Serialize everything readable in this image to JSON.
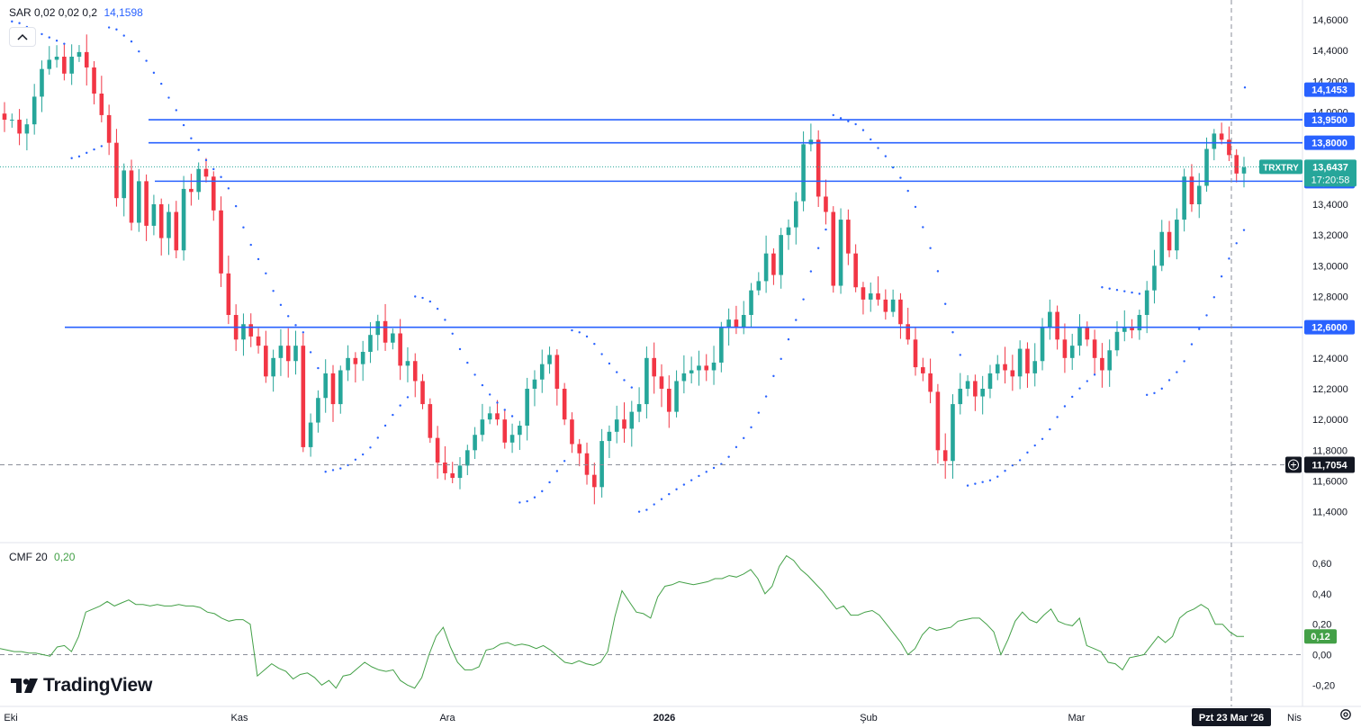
{
  "symbol": "TRXTRY",
  "price": {
    "last": "13,6437",
    "countdown": "17:20:58",
    "crosshair_value": "11,7054",
    "color": "#26a69a"
  },
  "sar": {
    "name": "SAR",
    "params": "0,02 0,02 0,2",
    "value": "14,1598"
  },
  "cmf": {
    "name": "CMF 20",
    "value": "0,20",
    "last_label": "0,12",
    "color": "#43a047"
  },
  "levels": [
    {
      "label": "14,1453",
      "value": 14.1453,
      "line": false
    },
    {
      "label": "13,9500",
      "value": 13.95,
      "line": true
    },
    {
      "label": "13,8000",
      "value": 13.8,
      "line": true
    },
    {
      "label": "13,5500",
      "value": 13.55,
      "line": true
    },
    {
      "label": "12,6000",
      "value": 12.6,
      "line": true
    }
  ],
  "colors": {
    "up": "#26a69a",
    "down": "#f23645",
    "level": "#2962ff",
    "sar": "#2962ff",
    "cmf": "#43a047"
  },
  "axis": {
    "price_ticks": [
      "14,6000",
      "14,4000",
      "14,2000",
      "14,0000",
      "13,8000",
      "13,6000",
      "13,4000",
      "13,2000",
      "13,0000",
      "12,8000",
      "12,6000",
      "12,4000",
      "12,2000",
      "12,0000",
      "11,8000",
      "11,6000",
      "11,4000"
    ],
    "cmf_ticks": [
      "0,60",
      "0,40",
      "0,20",
      "0,00",
      "-0,20"
    ],
    "time_labels": [
      "Eki",
      "Kas",
      "Ara",
      "2026",
      "Şub",
      "Mar",
      "Nis"
    ],
    "crosshair_date": "Pzt 23 Mar '26"
  },
  "brand": "TradingView",
  "chart_data": [
    {
      "type": "candlestick",
      "title": "TRXTRY",
      "interval": "daily",
      "x_labels": [
        "Eki",
        "Kas",
        "Ara",
        "2026",
        "Şub",
        "Mar",
        "Nis"
      ],
      "ylim": [
        11.3,
        14.7
      ],
      "close_path": [
        13.95,
        13.95,
        13.86,
        13.92,
        14.1,
        14.28,
        14.34,
        14.36,
        14.25,
        14.36,
        14.39,
        14.29,
        14.12,
        13.98,
        13.8,
        13.44,
        13.62,
        13.28,
        13.55,
        13.26,
        13.4,
        13.18,
        13.35,
        13.1,
        13.5,
        13.48,
        13.63,
        13.58,
        13.36,
        12.95,
        12.68,
        12.52,
        12.62,
        12.54,
        12.48,
        12.28,
        12.4,
        12.48,
        12.38,
        12.48,
        11.82,
        11.98,
        12.14,
        12.3,
        12.1,
        12.32,
        12.4,
        12.36,
        12.44,
        12.55,
        12.64,
        12.5,
        12.56,
        12.35,
        12.38,
        12.25,
        12.1,
        11.88,
        11.72,
        11.65,
        11.62,
        11.7,
        11.8,
        11.9,
        12.0,
        12.04,
        12.0,
        11.85,
        11.9,
        11.96,
        12.2,
        12.26,
        12.36,
        12.42,
        12.2,
        12.0,
        11.84,
        11.78,
        11.64,
        11.56,
        11.86,
        11.92,
        12.0,
        11.94,
        12.05,
        12.1,
        12.4,
        12.28,
        12.2,
        12.05,
        12.25,
        12.3,
        12.32,
        12.35,
        12.32,
        12.37,
        12.6,
        12.65,
        12.6,
        12.68,
        12.84,
        12.9,
        13.08,
        12.94,
        13.2,
        13.25,
        13.42,
        13.79,
        13.82,
        13.45,
        13.35,
        12.87,
        13.3,
        13.08,
        12.86,
        12.78,
        12.82,
        12.78,
        12.7,
        12.78,
        12.62,
        12.52,
        12.34,
        12.3,
        12.18,
        11.8,
        11.73,
        12.1,
        12.2,
        12.25,
        12.15,
        12.2,
        12.3,
        12.36,
        12.32,
        12.28,
        12.46,
        12.3,
        12.38,
        12.6,
        12.7,
        12.52,
        12.4,
        12.48,
        12.6,
        12.52,
        12.4,
        12.32,
        12.45,
        12.57,
        12.6,
        12.58,
        12.68,
        12.84,
        13.0,
        13.22,
        13.1,
        13.3,
        13.58,
        13.4,
        13.52,
        13.76,
        13.86,
        13.82,
        13.72,
        13.6,
        13.64
      ],
      "closing_price": 13.6437,
      "sar_last": 14.1598
    },
    {
      "type": "line",
      "title": "CMF 20",
      "ylim": [
        -0.28,
        0.7
      ],
      "values": [
        0.04,
        0.03,
        0.02,
        0.02,
        0.01,
        0.01,
        0.0,
        -0.01,
        0.05,
        0.06,
        0.02,
        0.12,
        0.28,
        0.3,
        0.32,
        0.35,
        0.32,
        0.34,
        0.36,
        0.33,
        0.33,
        0.32,
        0.33,
        0.32,
        0.32,
        0.33,
        0.32,
        0.32,
        0.31,
        0.28,
        0.27,
        0.24,
        0.22,
        0.23,
        0.23,
        0.2,
        -0.14,
        -0.1,
        -0.06,
        -0.09,
        -0.11,
        -0.16,
        -0.13,
        -0.12,
        -0.15,
        -0.2,
        -0.17,
        -0.22,
        -0.14,
        -0.13,
        -0.09,
        -0.05,
        -0.08,
        -0.1,
        -0.11,
        -0.1,
        -0.17,
        -0.2,
        -0.22,
        -0.15,
        0.0,
        0.12,
        0.18,
        0.05,
        -0.05,
        -0.1,
        -0.1,
        -0.08,
        0.03,
        0.04,
        0.07,
        0.08,
        0.06,
        0.07,
        0.06,
        0.04,
        0.06,
        0.03,
        -0.01,
        -0.05,
        -0.06,
        -0.04,
        -0.06,
        -0.07,
        -0.05,
        0.02,
        0.25,
        0.42,
        0.35,
        0.28,
        0.27,
        0.24,
        0.38,
        0.45,
        0.46,
        0.48,
        0.47,
        0.46,
        0.47,
        0.48,
        0.5,
        0.5,
        0.52,
        0.51,
        0.53,
        0.56,
        0.5,
        0.4,
        0.45,
        0.58,
        0.65,
        0.62,
        0.56,
        0.52,
        0.47,
        0.42,
        0.36,
        0.3,
        0.32,
        0.26,
        0.26,
        0.28,
        0.29,
        0.26,
        0.2,
        0.14,
        0.08,
        0.0,
        0.04,
        0.13,
        0.18,
        0.16,
        0.17,
        0.18,
        0.22,
        0.23,
        0.24,
        0.24,
        0.2,
        0.15,
        0.0,
        0.1,
        0.22,
        0.28,
        0.23,
        0.21,
        0.26,
        0.3,
        0.22,
        0.2,
        0.19,
        0.24,
        0.06,
        0.04,
        0.02,
        -0.05,
        -0.06,
        -0.1,
        -0.02,
        -0.01,
        0.0,
        0.06,
        0.12,
        0.08,
        0.12,
        0.24,
        0.28,
        0.3,
        0.33,
        0.3,
        0.2,
        0.2,
        0.15,
        0.12,
        0.12
      ],
      "last_value": 0.12
    }
  ]
}
